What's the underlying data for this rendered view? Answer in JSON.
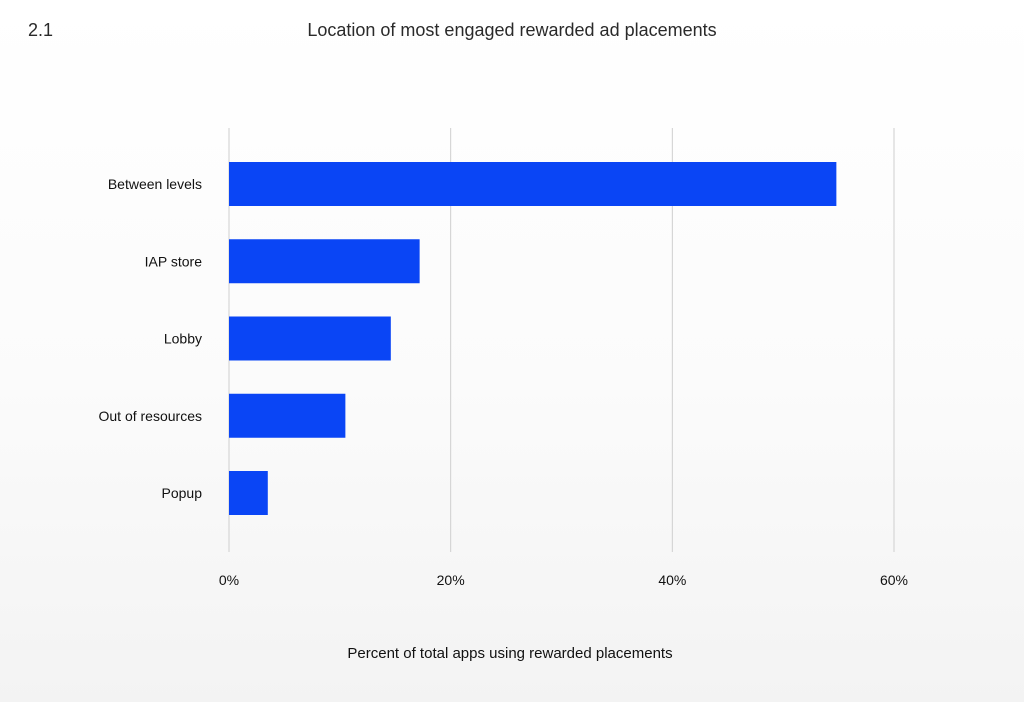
{
  "figure_number": "2.1",
  "colors": {
    "bar": "#0a45f5",
    "grid": "#cfcfcf"
  },
  "chart_data": {
    "type": "bar",
    "orientation": "horizontal",
    "title": "Location of most engaged rewarded ad placements",
    "xlabel": "Percent of total apps using rewarded placements",
    "ylabel": "",
    "categories": [
      "Between levels",
      "IAP store",
      "Lobby",
      "Out of resources",
      "Popup"
    ],
    "values": [
      54.8,
      17.2,
      14.6,
      10.5,
      3.5
    ],
    "xlim": [
      0,
      60
    ],
    "xticks": [
      0,
      20,
      40,
      60
    ],
    "xtick_labels": [
      "0%",
      "20%",
      "40%",
      "60%"
    ],
    "grid": true,
    "legend": "none"
  }
}
